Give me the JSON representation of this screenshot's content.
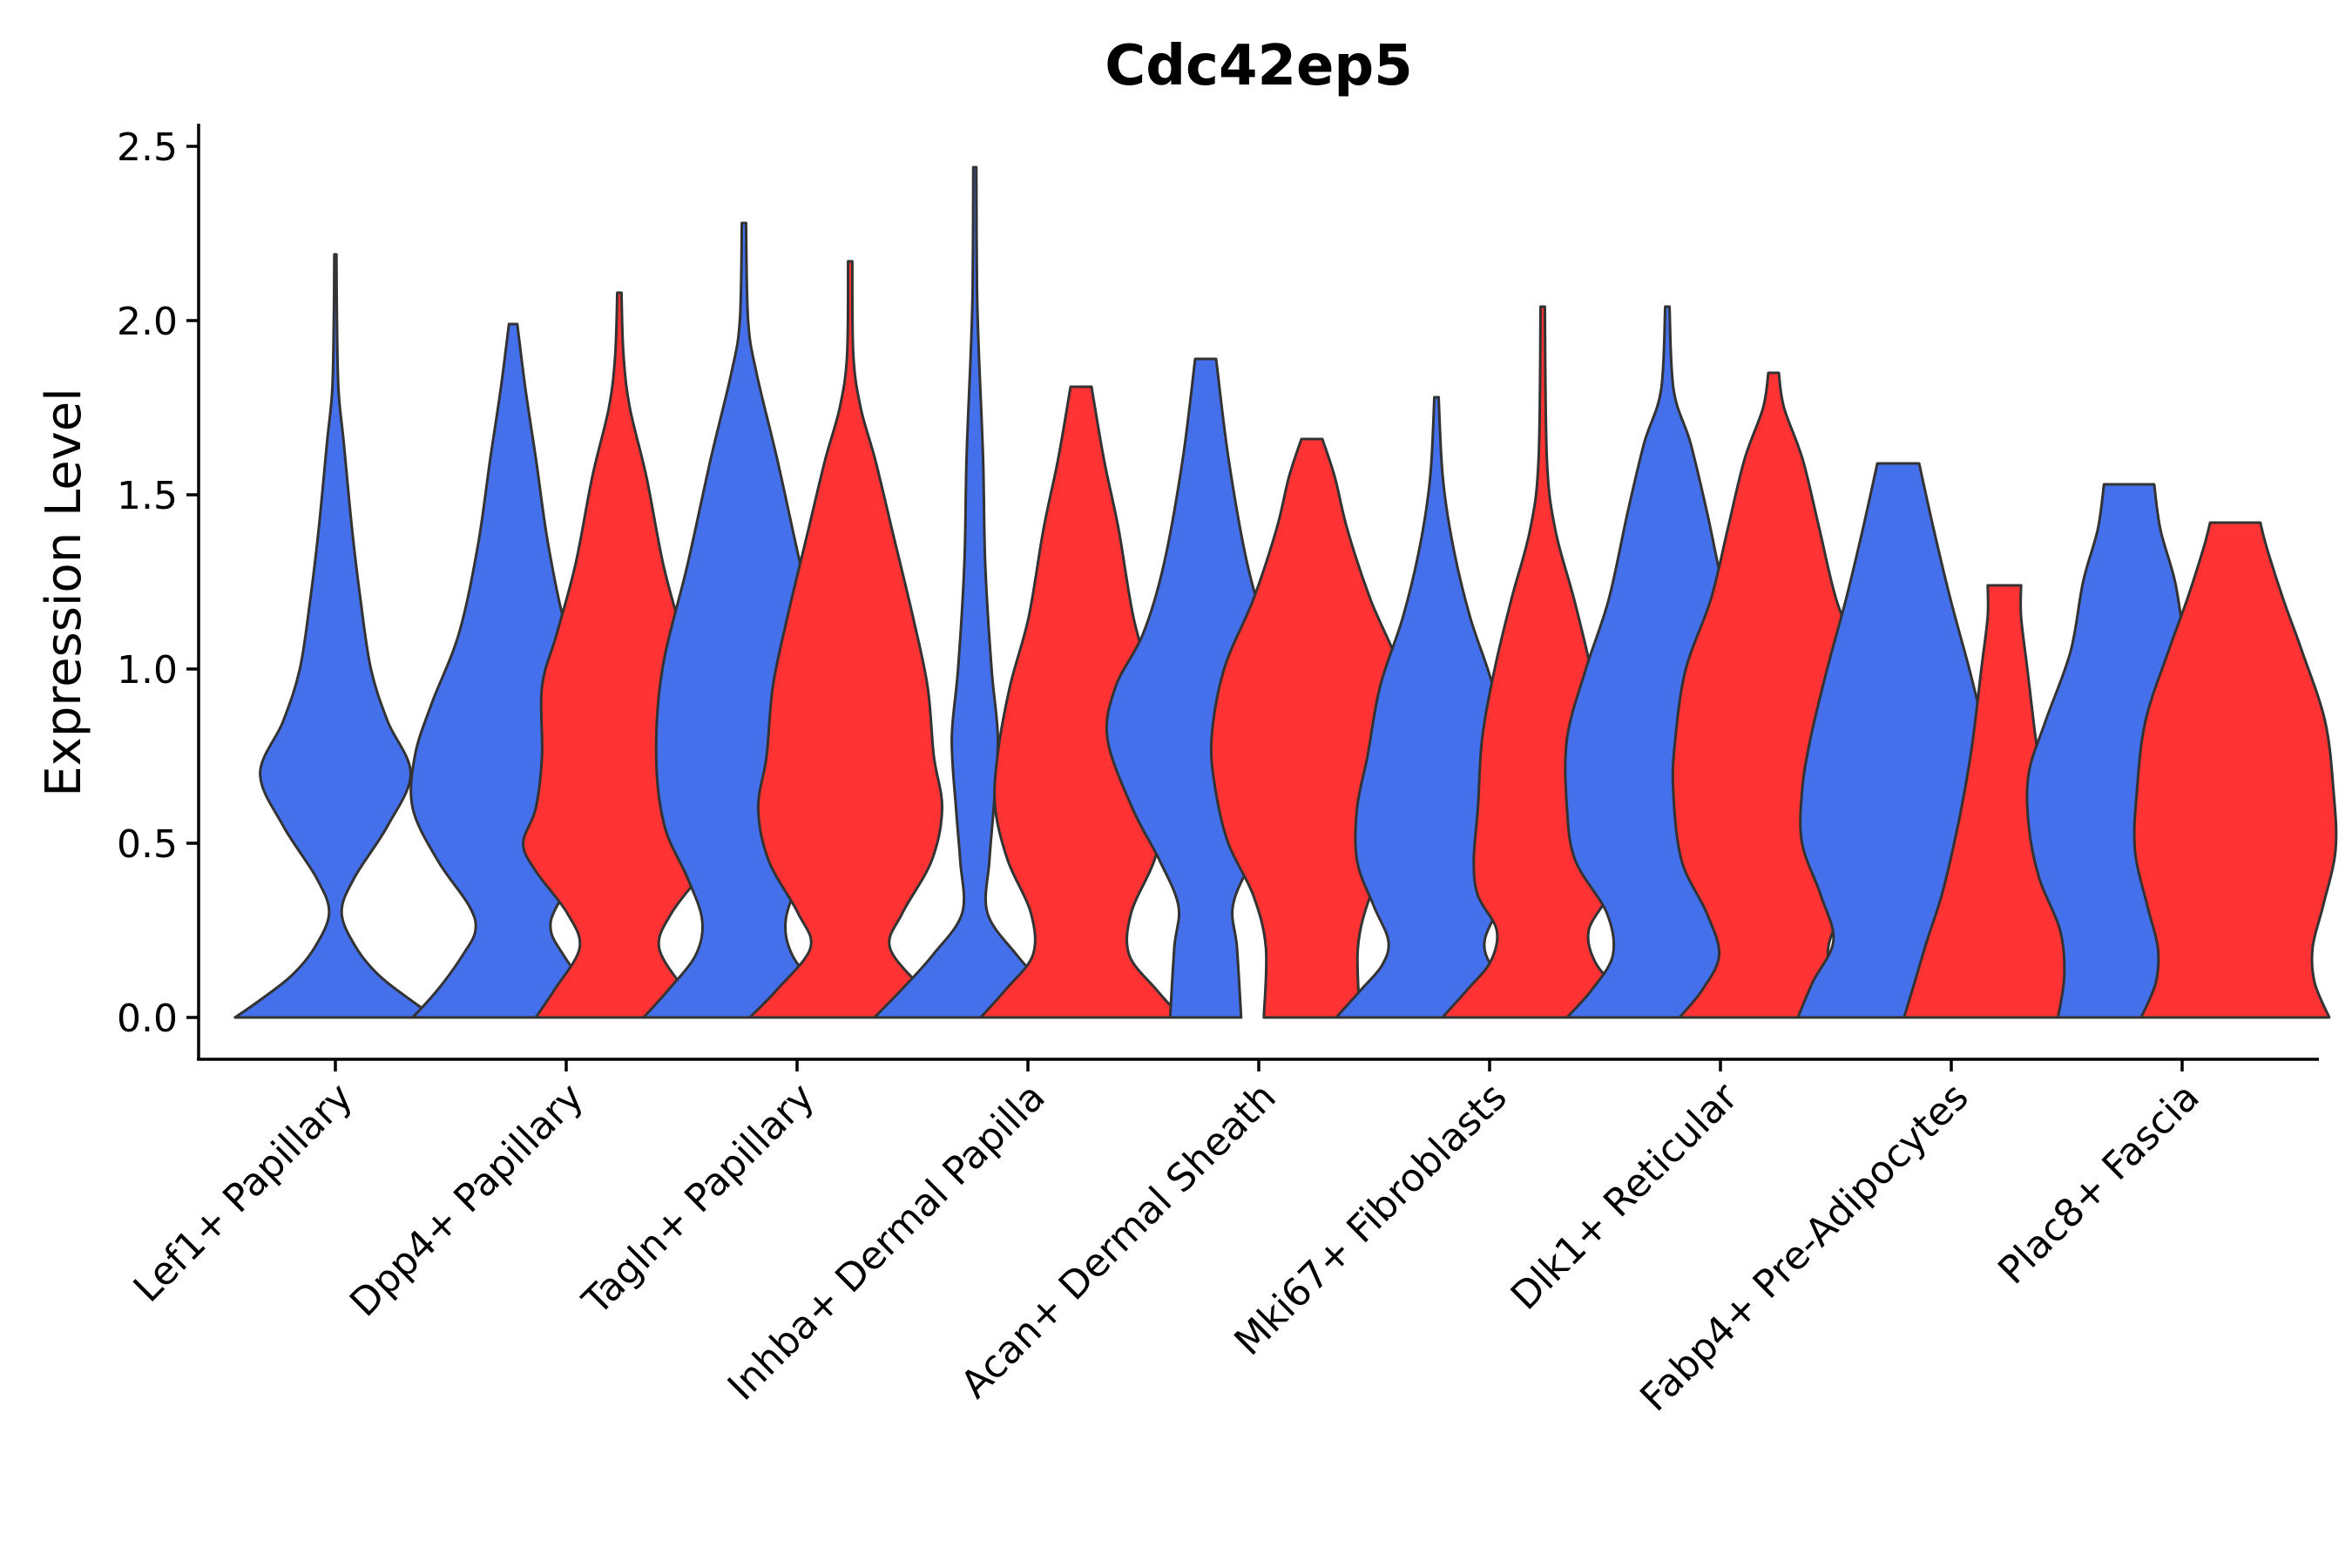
{
  "chart_data": {
    "type": "violin",
    "title": "Cdc42ep5",
    "xlabel": "",
    "ylabel": "Expression Level",
    "ylim": [
      -0.12,
      2.57
    ],
    "yticks": [
      "0.0",
      "0.5",
      "1.0",
      "1.5",
      "2.0",
      "2.5"
    ],
    "ytick_values": [
      0,
      0.5,
      1.0,
      1.5,
      2.0,
      2.5
    ],
    "grid": false,
    "colors": {
      "group1": "#4570EB",
      "group2": "#FF3333",
      "outline": "#333333"
    },
    "categories": [
      "Lef1+ Papillary",
      "Dpp4+ Papillary",
      "Tagln+ Papillary",
      "Inhba+ Dermal Papilla",
      "Acan+ Dermal Sheath",
      "Mki67+ Fibroblasts",
      "Dlk1+ Reticular",
      "Fabp4+ Pre-Adipocytes",
      "Plac8+ Fascia"
    ],
    "violins": [
      {
        "category": "Lef1+ Papillary",
        "group": "group1",
        "offset": 0,
        "max": 2.19,
        "profile": [
          [
            0,
            0.96
          ],
          [
            0.05,
            0.72
          ],
          [
            0.12,
            0.42
          ],
          [
            0.2,
            0.2
          ],
          [
            0.3,
            0.06
          ],
          [
            0.4,
            0.18
          ],
          [
            0.55,
            0.5
          ],
          [
            0.7,
            0.72
          ],
          [
            0.85,
            0.5
          ],
          [
            1.0,
            0.34
          ],
          [
            1.2,
            0.24
          ],
          [
            1.4,
            0.16
          ],
          [
            1.65,
            0.08
          ],
          [
            1.8,
            0.03
          ],
          [
            2.0,
            0.015
          ],
          [
            2.19,
            0.01
          ]
        ]
      },
      {
        "category": "Dpp4+ Papillary",
        "group": "group1",
        "offset": -0.23,
        "max": 1.99,
        "profile": [
          [
            0,
            0.96
          ],
          [
            0.08,
            0.72
          ],
          [
            0.18,
            0.48
          ],
          [
            0.25,
            0.36
          ],
          [
            0.32,
            0.42
          ],
          [
            0.45,
            0.72
          ],
          [
            0.6,
            0.96
          ],
          [
            0.75,
            0.94
          ],
          [
            0.9,
            0.78
          ],
          [
            1.1,
            0.52
          ],
          [
            1.35,
            0.34
          ],
          [
            1.6,
            0.22
          ],
          [
            1.8,
            0.12
          ],
          [
            1.99,
            0.04
          ]
        ]
      },
      {
        "category": "Dpp4+ Papillary",
        "group": "group2",
        "offset": 0.23,
        "max": 2.08,
        "profile": [
          [
            0,
            0.8
          ],
          [
            0.08,
            0.62
          ],
          [
            0.2,
            0.38
          ],
          [
            0.3,
            0.5
          ],
          [
            0.42,
            0.8
          ],
          [
            0.5,
            0.92
          ],
          [
            0.6,
            0.8
          ],
          [
            0.75,
            0.74
          ],
          [
            0.95,
            0.74
          ],
          [
            1.1,
            0.6
          ],
          [
            1.3,
            0.42
          ],
          [
            1.55,
            0.26
          ],
          [
            1.75,
            0.1
          ],
          [
            1.9,
            0.04
          ],
          [
            2.08,
            0.02
          ]
        ]
      },
      {
        "category": "Tagln+ Papillary",
        "group": "group1",
        "offset": -0.23,
        "max": 2.28,
        "profile": [
          [
            0,
            0.96
          ],
          [
            0.08,
            0.72
          ],
          [
            0.18,
            0.46
          ],
          [
            0.28,
            0.4
          ],
          [
            0.4,
            0.54
          ],
          [
            0.55,
            0.76
          ],
          [
            0.75,
            0.84
          ],
          [
            1.0,
            0.78
          ],
          [
            1.3,
            0.54
          ],
          [
            1.6,
            0.32
          ],
          [
            1.85,
            0.12
          ],
          [
            2.0,
            0.04
          ],
          [
            2.28,
            0.02
          ]
        ]
      },
      {
        "category": "Tagln+ Papillary",
        "group": "group2",
        "offset": 0.23,
        "max": 2.17,
        "profile": [
          [
            0,
            0.96
          ],
          [
            0.08,
            0.7
          ],
          [
            0.2,
            0.38
          ],
          [
            0.3,
            0.5
          ],
          [
            0.45,
            0.78
          ],
          [
            0.6,
            0.88
          ],
          [
            0.75,
            0.8
          ],
          [
            0.95,
            0.74
          ],
          [
            1.15,
            0.6
          ],
          [
            1.4,
            0.4
          ],
          [
            1.6,
            0.24
          ],
          [
            1.75,
            0.1
          ],
          [
            1.9,
            0.03
          ],
          [
            2.17,
            0.02
          ]
        ]
      },
      {
        "category": "Inhba+ Dermal Papilla",
        "group": "group1",
        "offset": -0.23,
        "max": 2.44,
        "profile": [
          [
            0,
            0.96
          ],
          [
            0.08,
            0.7
          ],
          [
            0.18,
            0.4
          ],
          [
            0.3,
            0.12
          ],
          [
            0.45,
            0.14
          ],
          [
            0.6,
            0.18
          ],
          [
            0.8,
            0.22
          ],
          [
            1.0,
            0.16
          ],
          [
            1.3,
            0.1
          ],
          [
            1.6,
            0.08
          ],
          [
            1.9,
            0.04
          ],
          [
            2.1,
            0.02
          ],
          [
            2.44,
            0.015
          ]
        ]
      },
      {
        "category": "Inhba+ Dermal Papilla",
        "group": "group2",
        "offset": 0.23,
        "max": 1.81,
        "profile": [
          [
            0,
            0.96
          ],
          [
            0.08,
            0.72
          ],
          [
            0.18,
            0.46
          ],
          [
            0.3,
            0.48
          ],
          [
            0.45,
            0.7
          ],
          [
            0.6,
            0.82
          ],
          [
            0.75,
            0.8
          ],
          [
            0.95,
            0.68
          ],
          [
            1.15,
            0.5
          ],
          [
            1.4,
            0.36
          ],
          [
            1.6,
            0.22
          ],
          [
            1.81,
            0.1
          ]
        ]
      },
      {
        "category": "Acan+ Dermal Sheath",
        "group": "group1",
        "offset": -0.23,
        "max": 1.89,
        "profile": [
          [
            0,
            0.34
          ],
          [
            0.2,
            0.3
          ],
          [
            0.32,
            0.26
          ],
          [
            0.45,
            0.44
          ],
          [
            0.6,
            0.7
          ],
          [
            0.8,
            0.94
          ],
          [
            0.95,
            0.86
          ],
          [
            1.1,
            0.6
          ],
          [
            1.3,
            0.4
          ],
          [
            1.6,
            0.22
          ],
          [
            1.89,
            0.1
          ]
        ]
      },
      {
        "category": "Acan+ Dermal Sheath",
        "group": "group2",
        "offset": 0.23,
        "max": 1.66,
        "profile": [
          [
            0,
            0.46
          ],
          [
            0.2,
            0.44
          ],
          [
            0.35,
            0.56
          ],
          [
            0.5,
            0.8
          ],
          [
            0.65,
            0.92
          ],
          [
            0.8,
            0.96
          ],
          [
            1.0,
            0.84
          ],
          [
            1.2,
            0.56
          ],
          [
            1.4,
            0.34
          ],
          [
            1.55,
            0.22
          ],
          [
            1.66,
            0.1
          ]
        ]
      },
      {
        "category": "Mki67+ Fibroblasts",
        "group": "group1",
        "offset": -0.23,
        "max": 1.78,
        "profile": [
          [
            0,
            0.96
          ],
          [
            0.08,
            0.72
          ],
          [
            0.15,
            0.52
          ],
          [
            0.22,
            0.46
          ],
          [
            0.32,
            0.6
          ],
          [
            0.45,
            0.76
          ],
          [
            0.6,
            0.76
          ],
          [
            0.75,
            0.66
          ],
          [
            0.95,
            0.54
          ],
          [
            1.15,
            0.32
          ],
          [
            1.35,
            0.16
          ],
          [
            1.55,
            0.06
          ],
          [
            1.78,
            0.02
          ]
        ]
      },
      {
        "category": "Mki67+ Fibroblasts",
        "group": "group2",
        "offset": 0.23,
        "max": 2.04,
        "profile": [
          [
            0,
            0.96
          ],
          [
            0.08,
            0.72
          ],
          [
            0.16,
            0.5
          ],
          [
            0.25,
            0.44
          ],
          [
            0.35,
            0.62
          ],
          [
            0.45,
            0.66
          ],
          [
            0.6,
            0.62
          ],
          [
            0.8,
            0.58
          ],
          [
            1.0,
            0.46
          ],
          [
            1.2,
            0.3
          ],
          [
            1.4,
            0.12
          ],
          [
            1.6,
            0.04
          ],
          [
            2.04,
            0.02
          ]
        ]
      },
      {
        "category": "Dlk1+ Reticular",
        "group": "group1",
        "offset": -0.23,
        "max": 2.04,
        "profile": [
          [
            0,
            0.96
          ],
          [
            0.08,
            0.72
          ],
          [
            0.18,
            0.52
          ],
          [
            0.3,
            0.58
          ],
          [
            0.45,
            0.88
          ],
          [
            0.6,
            0.96
          ],
          [
            0.8,
            0.96
          ],
          [
            1.0,
            0.78
          ],
          [
            1.2,
            0.56
          ],
          [
            1.45,
            0.38
          ],
          [
            1.65,
            0.22
          ],
          [
            1.8,
            0.06
          ],
          [
            2.04,
            0.02
          ]
        ]
      },
      {
        "category": "Dlk1+ Reticular",
        "group": "group2",
        "offset": 0.23,
        "max": 1.85,
        "profile": [
          [
            0,
            0.9
          ],
          [
            0.08,
            0.68
          ],
          [
            0.18,
            0.52
          ],
          [
            0.3,
            0.64
          ],
          [
            0.45,
            0.88
          ],
          [
            0.65,
            0.96
          ],
          [
            0.8,
            0.94
          ],
          [
            1.0,
            0.84
          ],
          [
            1.2,
            0.6
          ],
          [
            1.4,
            0.44
          ],
          [
            1.6,
            0.28
          ],
          [
            1.75,
            0.1
          ],
          [
            1.85,
            0.05
          ]
        ]
      },
      {
        "category": "Fabp4+ Pre-Adipocytes",
        "group": "group1",
        "offset": -0.23,
        "max": 1.59,
        "profile": [
          [
            0,
            0.96
          ],
          [
            0.1,
            0.82
          ],
          [
            0.22,
            0.62
          ],
          [
            0.35,
            0.74
          ],
          [
            0.5,
            0.92
          ],
          [
            0.65,
            0.92
          ],
          [
            0.8,
            0.84
          ],
          [
            1.0,
            0.68
          ],
          [
            1.2,
            0.5
          ],
          [
            1.4,
            0.34
          ],
          [
            1.59,
            0.2
          ]
        ]
      },
      {
        "category": "Fabp4+ Pre-Adipocytes",
        "group": "group2",
        "offset": 0.23,
        "max": 1.24,
        "profile": [
          [
            0,
            0.96
          ],
          [
            0.1,
            0.86
          ],
          [
            0.22,
            0.74
          ],
          [
            0.35,
            0.6
          ],
          [
            0.5,
            0.48
          ],
          [
            0.65,
            0.38
          ],
          [
            0.8,
            0.3
          ],
          [
            1.0,
            0.22
          ],
          [
            1.15,
            0.16
          ],
          [
            1.24,
            0.16
          ]
        ]
      },
      {
        "category": "Plac8+ Fascia",
        "group": "group1",
        "offset": -0.23,
        "max": 1.53,
        "profile": [
          [
            0,
            0.68
          ],
          [
            0.12,
            0.62
          ],
          [
            0.25,
            0.66
          ],
          [
            0.4,
            0.86
          ],
          [
            0.55,
            0.96
          ],
          [
            0.7,
            0.96
          ],
          [
            0.85,
            0.8
          ],
          [
            1.05,
            0.56
          ],
          [
            1.25,
            0.44
          ],
          [
            1.4,
            0.3
          ],
          [
            1.53,
            0.24
          ]
        ]
      },
      {
        "category": "Plac8+ Fascia",
        "group": "group2",
        "offset": 0.23,
        "max": 1.42,
        "profile": [
          [
            0,
            0.9
          ],
          [
            0.1,
            0.76
          ],
          [
            0.2,
            0.74
          ],
          [
            0.32,
            0.84
          ],
          [
            0.48,
            0.96
          ],
          [
            0.65,
            0.94
          ],
          [
            0.85,
            0.86
          ],
          [
            1.05,
            0.64
          ],
          [
            1.2,
            0.46
          ],
          [
            1.35,
            0.3
          ],
          [
            1.42,
            0.24
          ]
        ]
      }
    ]
  }
}
